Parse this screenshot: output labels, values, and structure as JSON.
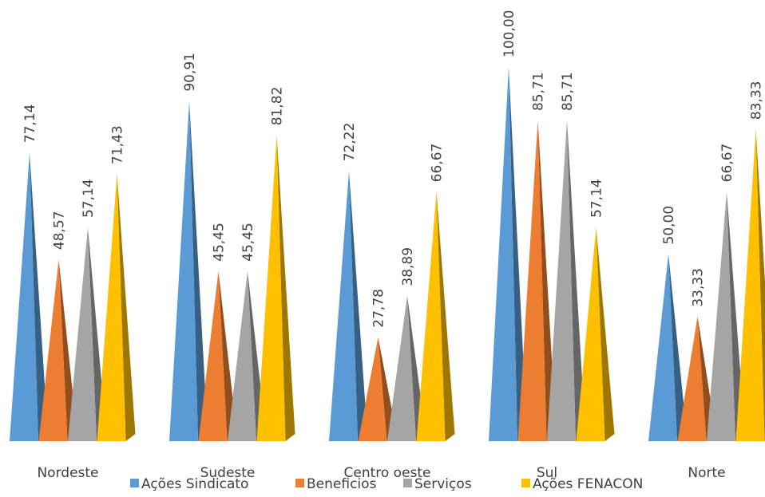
{
  "chart_data": {
    "type": "bar",
    "style": "3d-pyramid",
    "categories": [
      "Nordeste",
      "Sudeste",
      "Centro oeste",
      "Sul",
      "Norte"
    ],
    "series": [
      {
        "name": "Ações Sindicato",
        "color": "#5B9BD5",
        "values": [
          77.14,
          90.91,
          72.22,
          100.0,
          50.0
        ]
      },
      {
        "name": "Beneficios",
        "color": "#ED7D31",
        "values": [
          48.57,
          45.45,
          27.78,
          85.71,
          33.33
        ]
      },
      {
        "name": "Serviços",
        "color": "#A5A5A5",
        "values": [
          57.14,
          45.45,
          38.89,
          85.71,
          66.67
        ]
      },
      {
        "name": "Ações FENACON",
        "color": "#FFC000",
        "values": [
          71.43,
          81.82,
          66.67,
          57.14,
          83.33
        ]
      }
    ],
    "value_labels": [
      [
        "77,14",
        "90,91",
        "72,22",
        "100,00",
        "50,00"
      ],
      [
        "48,57",
        "45,45",
        "27,78",
        "85,71",
        "33,33"
      ],
      [
        "57,14",
        "45,45",
        "38,89",
        "85,71",
        "66,67"
      ],
      [
        "71,43",
        "81,82",
        "66,67",
        "57,14",
        "83,33"
      ]
    ],
    "ylim": [
      0,
      100
    ],
    "grid": false,
    "legend_position": "bottom"
  }
}
